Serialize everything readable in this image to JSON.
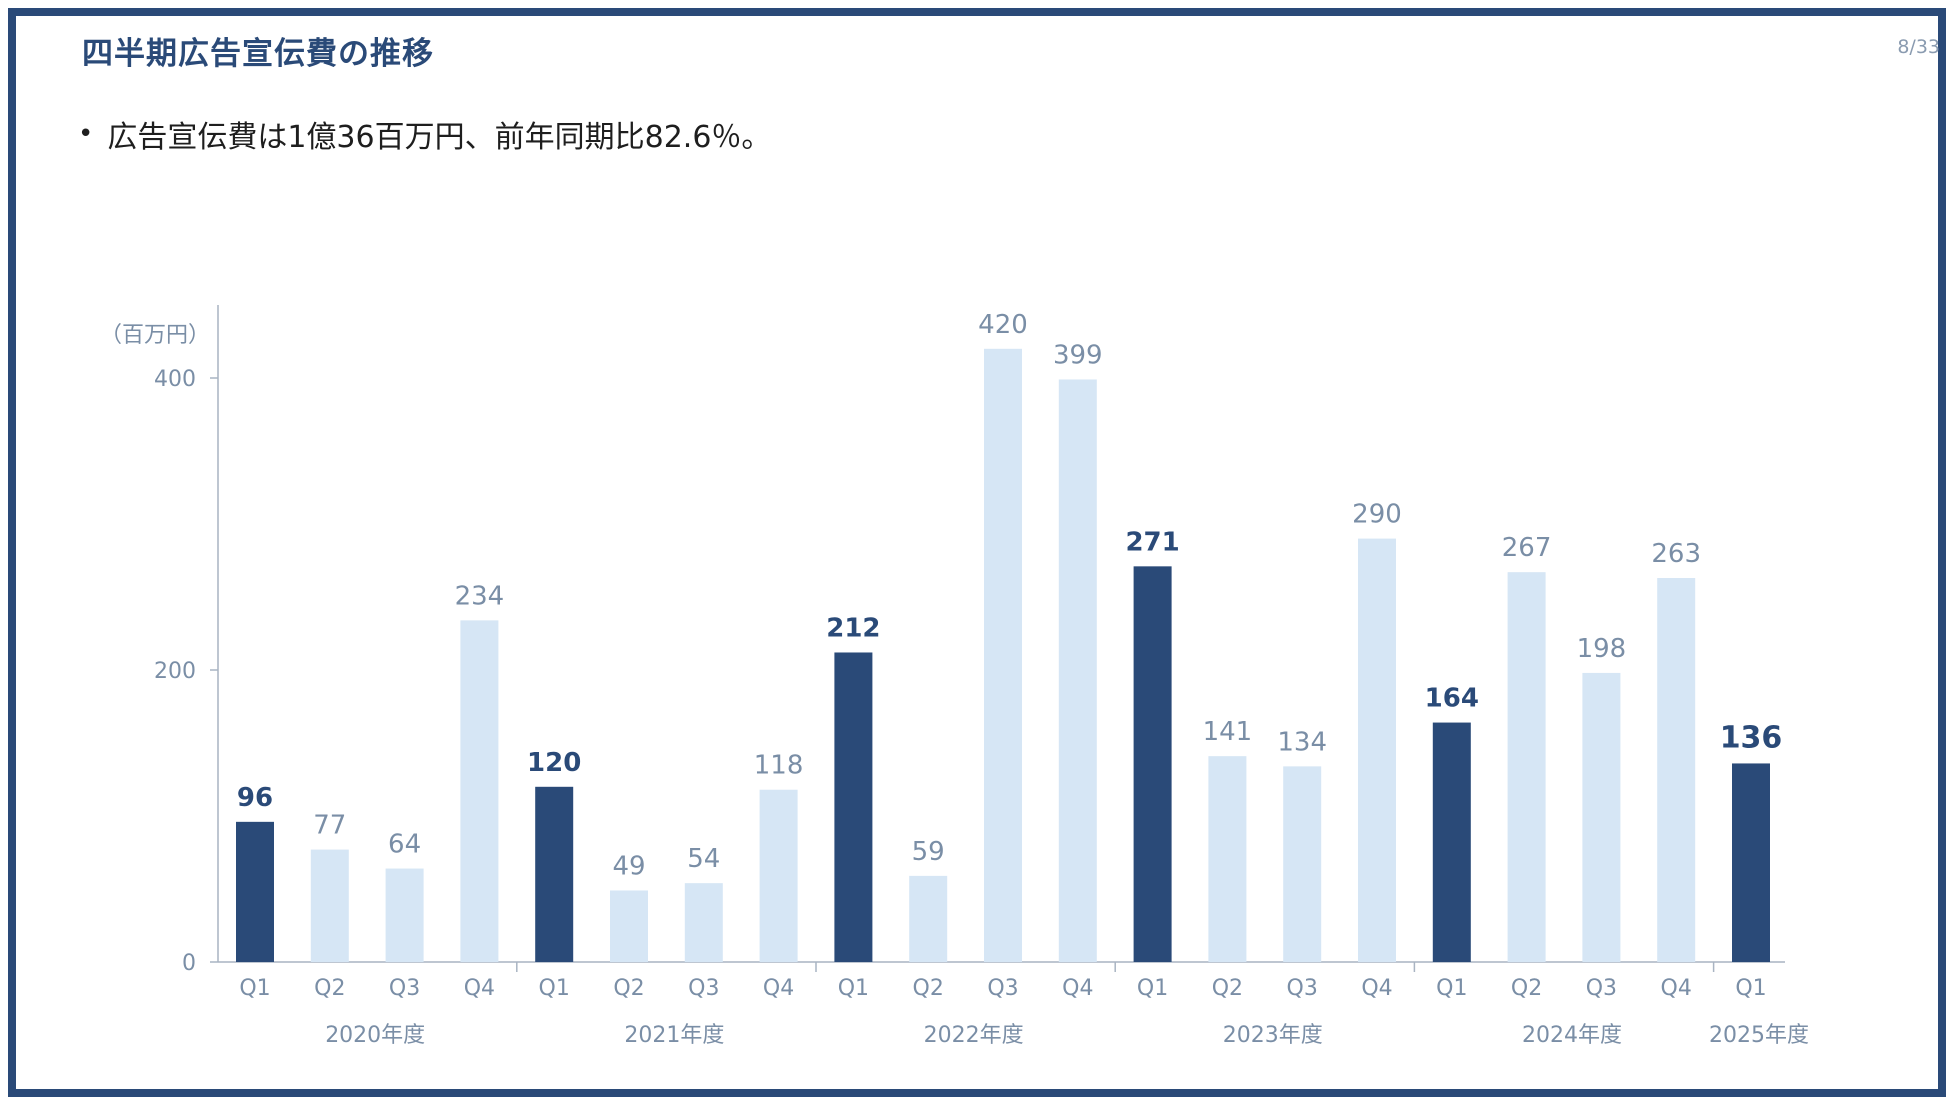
{
  "title": "四半期広告宣伝費の推移",
  "page_number": "8/33",
  "bullet_text": "広告宣伝費は1億36百万円、前年同期比82.6％。",
  "colors": {
    "border": "#2a4a78",
    "highlight": "#2a4a78",
    "normal": "#d6e6f5",
    "axis_text": "#7a8ea6"
  },
  "chart_data": {
    "type": "bar",
    "ylabel": "（百万円）",
    "ylim": [
      0,
      450
    ],
    "yticks": [
      0,
      200,
      400
    ],
    "categories": [
      "Q1",
      "Q2",
      "Q3",
      "Q4",
      "Q1",
      "Q2",
      "Q3",
      "Q4",
      "Q1",
      "Q2",
      "Q3",
      "Q4",
      "Q1",
      "Q2",
      "Q3",
      "Q4",
      "Q1",
      "Q2",
      "Q3",
      "Q4",
      "Q1"
    ],
    "values": [
      96,
      77,
      64,
      234,
      120,
      49,
      54,
      118,
      212,
      59,
      420,
      399,
      271,
      141,
      134,
      290,
      164,
      267,
      198,
      263,
      136
    ],
    "highlight": [
      true,
      false,
      false,
      false,
      true,
      false,
      false,
      false,
      true,
      false,
      false,
      false,
      true,
      false,
      false,
      false,
      true,
      false,
      false,
      false,
      true
    ],
    "groups": [
      "2020年度",
      "2021年度",
      "2022年度",
      "2023年度",
      "2024年度",
      "2025年度"
    ],
    "group_sizes": [
      4,
      4,
      4,
      4,
      4,
      1
    ]
  }
}
